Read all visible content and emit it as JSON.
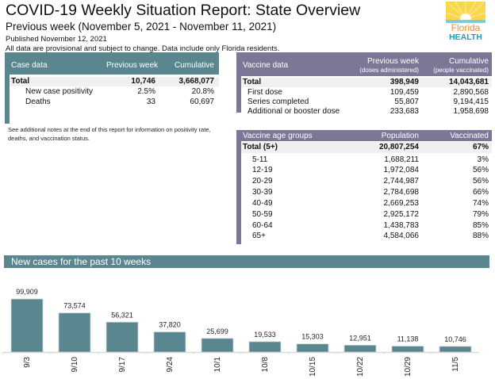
{
  "header": {
    "title": "COVID-19 Weekly Situation Report: State Overview",
    "subtitle": "Previous week (November 5, 2021 - November 11, 2021)",
    "published": "Published November 12, 2021",
    "note": "All data are provisional and subject to change. Data include only Florida residents.",
    "logo": {
      "line1": "Florida",
      "line2": "HEALTH"
    }
  },
  "colors": {
    "case_accent": "#5a8690",
    "vaccine_accent": "#7d7697",
    "bar_fill": "#5a8690",
    "logo_orange": "#f28c28",
    "logo_teal": "#1a9fb5",
    "logo_yellow": "#f7c936"
  },
  "case_data": {
    "headers": [
      "Case data",
      "Previous week",
      "Cumulative"
    ],
    "rows": [
      {
        "label": "Total",
        "week": "10,746",
        "cumulative": "3,668,077",
        "total": true
      },
      {
        "label": "New case positivity",
        "week": "2.5%",
        "cumulative": "20.8%"
      },
      {
        "label": "Deaths",
        "week": "33",
        "cumulative": "60,697"
      }
    ],
    "footnote": "See additional notes at the end of this report for information on positivity rate, deaths, and vaccination status."
  },
  "vaccine_data": {
    "headers": [
      "Vaccine data",
      "Previous week",
      "Cumulative"
    ],
    "subheaders": [
      "(doses administered)",
      "(people vaccinated)"
    ],
    "rows": [
      {
        "label": "Total",
        "week": "398,949",
        "cumulative": "14,043,681",
        "total": true
      },
      {
        "label": "First dose",
        "week": "109,459",
        "cumulative": "2,890,568"
      },
      {
        "label": "Series completed",
        "week": "55,807",
        "cumulative": "9,194,415"
      },
      {
        "label": "Additional or booster dose",
        "week": "233,683",
        "cumulative": "1,958,698"
      }
    ]
  },
  "age_groups": {
    "headers": [
      "Vaccine age groups",
      "Population",
      "Vaccinated"
    ],
    "rows": [
      {
        "label": "Total (5+)",
        "population": "20,807,254",
        "vaccinated": "67%",
        "total": true
      },
      {
        "label": "5-11",
        "population": "1,688,211",
        "vaccinated": "3%"
      },
      {
        "label": "12-19",
        "population": "1,972,084",
        "vaccinated": "56%"
      },
      {
        "label": "20-29",
        "population": "2,744,987",
        "vaccinated": "56%"
      },
      {
        "label": "30-39",
        "population": "2,784,698",
        "vaccinated": "66%"
      },
      {
        "label": "40-49",
        "population": "2,669,253",
        "vaccinated": "74%"
      },
      {
        "label": "50-59",
        "population": "2,925,172",
        "vaccinated": "79%"
      },
      {
        "label": "60-64",
        "population": "1,438,783",
        "vaccinated": "85%"
      },
      {
        "label": "65+",
        "population": "4,584,066",
        "vaccinated": "88%"
      }
    ]
  },
  "chart_data": {
    "type": "bar",
    "title": "New cases for the past 10 weeks",
    "xlabel": "",
    "ylabel": "",
    "categories": [
      "9/3",
      "9/10",
      "9/17",
      "9/24",
      "10/1",
      "10/8",
      "10/15",
      "10/22",
      "10/29",
      "11/5"
    ],
    "values": [
      99909,
      73574,
      56321,
      37820,
      25699,
      19533,
      15303,
      12951,
      11138,
      10746
    ],
    "data_labels": [
      "99,909",
      "73,574",
      "56,321",
      "37,820",
      "25,699",
      "19,533",
      "15,303",
      "12,951",
      "11,138",
      "10,746"
    ],
    "ylim": [
      0,
      100000
    ],
    "grid": false,
    "legend": "none"
  }
}
